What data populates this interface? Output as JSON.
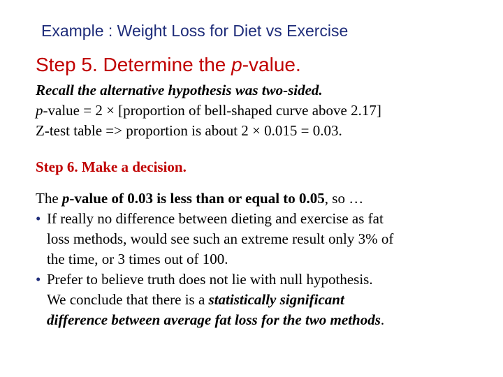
{
  "title": "Example : Weight Loss for Diet vs Exercise",
  "step5": {
    "prefix": "Step 5. Determine the ",
    "italic": "p",
    "suffix": "-value."
  },
  "block1": {
    "line1": "Recall the alternative hypothesis was two-sided.",
    "line2_p": "p",
    "line2_rest": "-value = 2 × [proportion of bell-shaped curve above 2.17]",
    "line3": "Z-test table  => proportion is about 2 × 0.015 = 0.03."
  },
  "step6": "Step 6. Make a decision.",
  "block2": {
    "l1_a": "The ",
    "l1_p": "p",
    "l1_b": "-value of 0.03 is less than or equal to 0.05",
    "l1_c": ", so …",
    "bullet_symbol": "•",
    "b1_line1": "If really no difference between dieting and exercise as fat",
    "b1_line2": "loss methods, would see such an extreme result only 3% of",
    "b1_line3": "the time, or 3 times out of 100.",
    "b2_line1": "Prefer to believe truth does not lie with null hypothesis.",
    "b2_line2_a": "We conclude that there is a ",
    "b2_line2_b": "statistically significant",
    "b2_line3_a": "difference between average fat loss for the two methods",
    "b2_line3_b": "."
  }
}
